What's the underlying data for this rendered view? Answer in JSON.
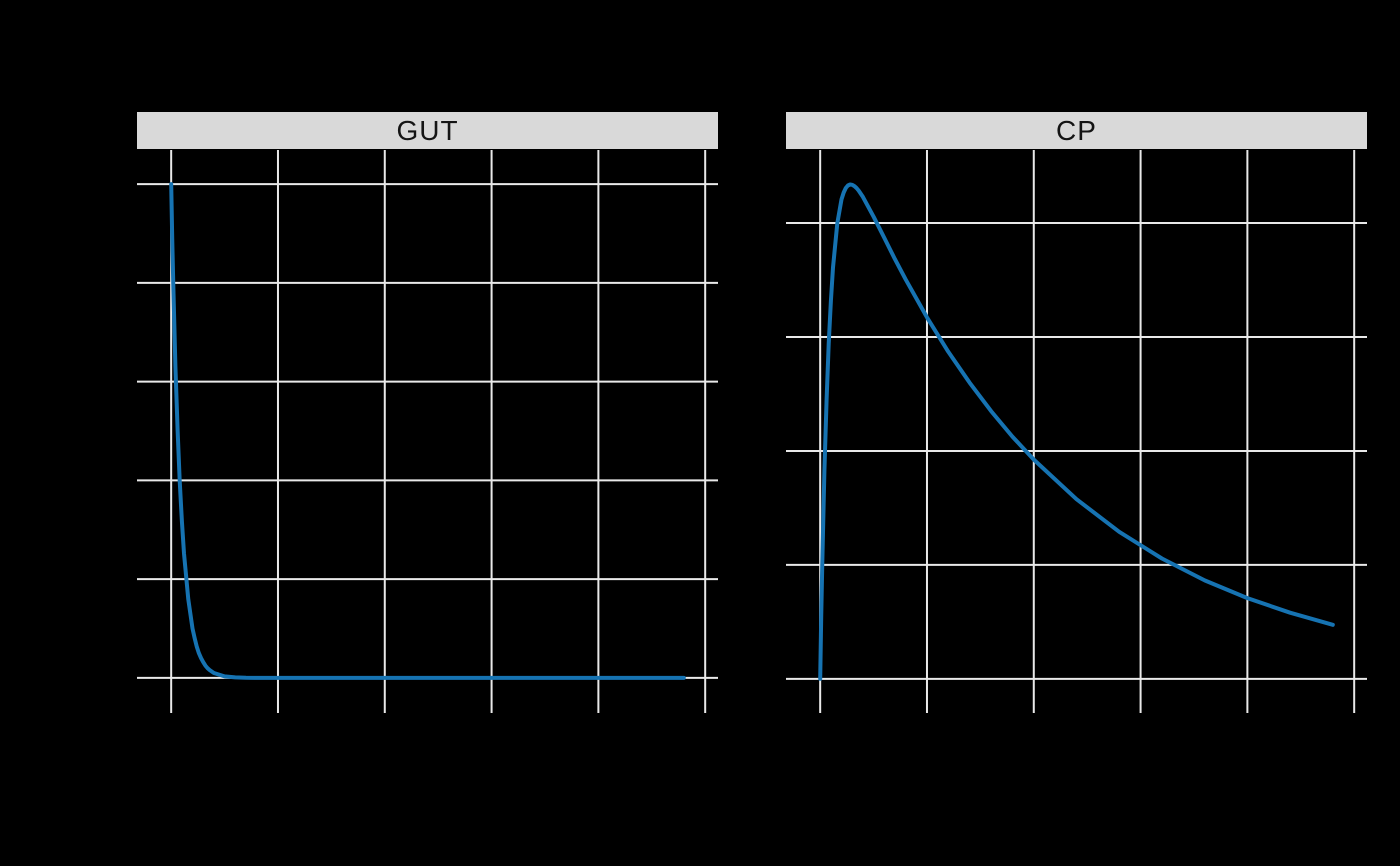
{
  "figure": {
    "background_color": "#000000",
    "strip_background_color": "#d9d9d9",
    "strip_text_color": "#141414",
    "gridline_color": "#e9e9e9",
    "gridline_width": 2,
    "line_color": "#1673b2",
    "line_width": 4
  },
  "chart_data": {
    "type": "line",
    "title": "",
    "legend": "none",
    "grid": "white major gridlines, both axes, no panel border, no visible tick labels",
    "layout": "two side-by-side facet panels with strip headers, shared x scale, free y scales",
    "x_unit": "time (h, estimated from gridlines)",
    "x": [
      0,
      0.05,
      0.1,
      0.2,
      0.3,
      0.4,
      0.5,
      0.6,
      0.8,
      1,
      1.1,
      1.2,
      1.3,
      1.4,
      1.5,
      1.6,
      1.7,
      1.8,
      2,
      2.5,
      3,
      3.5,
      4,
      5,
      6,
      7,
      8,
      9,
      10,
      12,
      14,
      16,
      18,
      20,
      22,
      24
    ],
    "panels": [
      {
        "title": "GUT",
        "series_name": "GUT",
        "values": [
          100,
          89.1,
          79.5,
          63.1,
          50.2,
          39.9,
          31.7,
          25.2,
          15.9,
          10,
          8,
          6.3,
          5,
          4,
          3.2,
          2.5,
          2,
          1.6,
          1,
          0.32,
          0.1,
          0.03,
          0.01,
          0,
          0,
          0,
          0,
          0,
          0,
          0,
          0,
          0,
          0,
          0,
          0,
          0
        ],
        "xlim": [
          -1.6,
          25.6
        ],
        "ylim": [
          -7.1,
          107.1
        ],
        "x_gridlines": [
          0,
          5,
          10,
          15,
          20,
          25
        ],
        "y_gridlines": [
          0,
          20,
          40,
          60,
          80,
          100
        ]
      },
      {
        "title": "CP",
        "series_name": "CP",
        "values": [
          0,
          2.71,
          5.11,
          9.12,
          12.26,
          14.7,
          16.59,
          18.05,
          19.99,
          21.04,
          21.34,
          21.54,
          21.65,
          21.69,
          21.68,
          21.62,
          21.54,
          21.43,
          21.15,
          20.28,
          19.35,
          18.42,
          17.53,
          15.86,
          14.35,
          12.99,
          11.75,
          10.63,
          9.62,
          7.88,
          6.45,
          5.28,
          4.32,
          3.54,
          2.9,
          2.37
        ],
        "xlim": [
          -1.6,
          25.6
        ],
        "ylim": [
          -1.5,
          23.25
        ],
        "x_gridlines": [
          0,
          5,
          10,
          15,
          20,
          25
        ],
        "y_gridlines": [
          0,
          5,
          10,
          15,
          20
        ]
      }
    ]
  }
}
